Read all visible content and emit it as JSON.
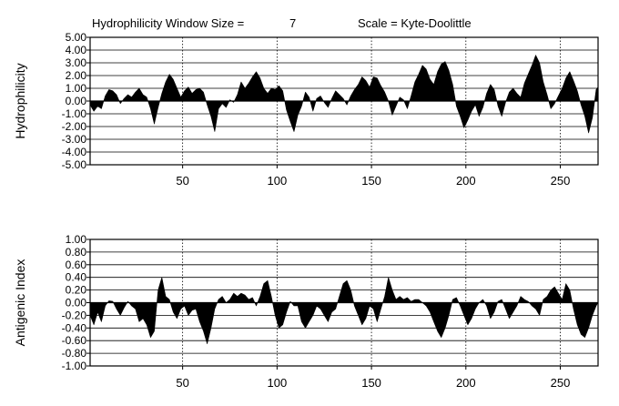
{
  "header": {
    "window_label": "Hydrophilicity Window Size =",
    "window_value": "7",
    "scale_label": "Scale = Kyte-Doolittle"
  },
  "chart_data": [
    {
      "type": "area",
      "ylabel": "Hydrophilicity",
      "xlim": [
        1,
        270
      ],
      "ylim": [
        -5,
        5
      ],
      "y_ticks": [
        "5.00",
        "4.00",
        "3.00",
        "2.00",
        "1.00",
        "0.00",
        "-1.00",
        "-2.00",
        "-3.00",
        "-4.00",
        "-5.00"
      ],
      "x_ticks": [
        "50",
        "100",
        "150",
        "200",
        "250"
      ],
      "grid": "horizontal lines at each y tick; dotted vertical lines at each x tick",
      "fill_color": "#000000",
      "profile": [
        [
          1,
          -0.3
        ],
        [
          3,
          -0.8
        ],
        [
          5,
          -0.4
        ],
        [
          7,
          -0.6
        ],
        [
          9,
          0.4
        ],
        [
          11,
          0.9
        ],
        [
          13,
          0.8
        ],
        [
          15,
          0.5
        ],
        [
          17,
          -0.2
        ],
        [
          19,
          0.2
        ],
        [
          21,
          0.5
        ],
        [
          23,
          0.3
        ],
        [
          25,
          0.7
        ],
        [
          27,
          1.0
        ],
        [
          29,
          0.5
        ],
        [
          31,
          0.3
        ],
        [
          33,
          -0.6
        ],
        [
          35,
          -1.8
        ],
        [
          37,
          -0.5
        ],
        [
          39,
          0.6
        ],
        [
          41,
          1.5
        ],
        [
          43,
          2.1
        ],
        [
          45,
          1.7
        ],
        [
          47,
          1.0
        ],
        [
          49,
          0.3
        ],
        [
          51,
          0.8
        ],
        [
          53,
          1.1
        ],
        [
          55,
          0.6
        ],
        [
          57,
          0.9
        ],
        [
          59,
          1.0
        ],
        [
          61,
          0.7
        ],
        [
          63,
          -0.3
        ],
        [
          65,
          -1.2
        ],
        [
          67,
          -2.4
        ],
        [
          69,
          -0.6
        ],
        [
          71,
          -0.2
        ],
        [
          73,
          -0.5
        ],
        [
          75,
          0.1
        ],
        [
          77,
          -0.1
        ],
        [
          79,
          0.5
        ],
        [
          81,
          1.5
        ],
        [
          83,
          1.0
        ],
        [
          85,
          1.4
        ],
        [
          87,
          1.9
        ],
        [
          89,
          2.3
        ],
        [
          91,
          1.8
        ],
        [
          93,
          1.0
        ],
        [
          95,
          0.6
        ],
        [
          97,
          1.0
        ],
        [
          99,
          0.9
        ],
        [
          101,
          1.2
        ],
        [
          103,
          0.8
        ],
        [
          105,
          -0.7
        ],
        [
          107,
          -1.6
        ],
        [
          109,
          -2.4
        ],
        [
          111,
          -1.1
        ],
        [
          113,
          -0.4
        ],
        [
          115,
          0.7
        ],
        [
          117,
          0.3
        ],
        [
          119,
          -0.8
        ],
        [
          121,
          0.2
        ],
        [
          123,
          0.4
        ],
        [
          125,
          -0.1
        ],
        [
          127,
          -0.5
        ],
        [
          129,
          0.2
        ],
        [
          131,
          0.8
        ],
        [
          133,
          0.5
        ],
        [
          135,
          0.2
        ],
        [
          137,
          -0.3
        ],
        [
          139,
          0.4
        ],
        [
          141,
          0.9
        ],
        [
          143,
          1.3
        ],
        [
          145,
          1.9
        ],
        [
          147,
          1.6
        ],
        [
          149,
          1.1
        ],
        [
          151,
          1.9
        ],
        [
          153,
          1.8
        ],
        [
          155,
          1.2
        ],
        [
          157,
          0.7
        ],
        [
          159,
          0.0
        ],
        [
          161,
          -1.1
        ],
        [
          163,
          -0.4
        ],
        [
          165,
          0.3
        ],
        [
          167,
          0.1
        ],
        [
          169,
          -0.6
        ],
        [
          171,
          0.4
        ],
        [
          173,
          1.5
        ],
        [
          175,
          2.1
        ],
        [
          177,
          2.8
        ],
        [
          179,
          2.5
        ],
        [
          181,
          1.7
        ],
        [
          183,
          1.3
        ],
        [
          185,
          2.3
        ],
        [
          187,
          2.9
        ],
        [
          189,
          3.1
        ],
        [
          191,
          2.4
        ],
        [
          193,
          1.3
        ],
        [
          195,
          -0.4
        ],
        [
          197,
          -1.2
        ],
        [
          199,
          -2.1
        ],
        [
          201,
          -1.5
        ],
        [
          203,
          -0.8
        ],
        [
          205,
          -0.3
        ],
        [
          207,
          -1.2
        ],
        [
          209,
          -0.5
        ],
        [
          211,
          0.6
        ],
        [
          213,
          1.3
        ],
        [
          215,
          0.9
        ],
        [
          217,
          -0.4
        ],
        [
          219,
          -1.2
        ],
        [
          221,
          -0.1
        ],
        [
          223,
          0.7
        ],
        [
          225,
          1.0
        ],
        [
          227,
          0.6
        ],
        [
          229,
          0.3
        ],
        [
          231,
          1.4
        ],
        [
          233,
          2.1
        ],
        [
          235,
          2.8
        ],
        [
          237,
          3.6
        ],
        [
          239,
          3.0
        ],
        [
          241,
          1.5
        ],
        [
          243,
          0.5
        ],
        [
          245,
          -0.6
        ],
        [
          247,
          -0.2
        ],
        [
          249,
          0.4
        ],
        [
          251,
          1.0
        ],
        [
          253,
          1.8
        ],
        [
          255,
          2.3
        ],
        [
          257,
          1.6
        ],
        [
          259,
          0.8
        ],
        [
          261,
          -0.3
        ],
        [
          263,
          -1.2
        ],
        [
          265,
          -2.5
        ],
        [
          267,
          -1.3
        ],
        [
          269,
          0.9
        ],
        [
          270,
          1.1
        ]
      ]
    },
    {
      "type": "area",
      "ylabel": "Antigenic Index",
      "xlim": [
        1,
        270
      ],
      "ylim": [
        -1.0,
        1.0
      ],
      "y_ticks": [
        "1.00",
        "0.80",
        "0.60",
        "0.40",
        "0.20",
        "0.00",
        "-0.20",
        "-0.40",
        "-0.60",
        "-0.80",
        "-1.00"
      ],
      "x_ticks": [
        "50",
        "100",
        "150",
        "200",
        "250"
      ],
      "grid": "horizontal lines at each y tick; dotted vertical lines at each x tick",
      "fill_color": "#000000",
      "profile": [
        [
          1,
          -0.2
        ],
        [
          3,
          -0.35
        ],
        [
          5,
          -0.15
        ],
        [
          7,
          -0.3
        ],
        [
          9,
          -0.05
        ],
        [
          11,
          0.03
        ],
        [
          13,
          0.02
        ],
        [
          15,
          -0.1
        ],
        [
          17,
          -0.2
        ],
        [
          19,
          -0.08
        ],
        [
          21,
          0.02
        ],
        [
          23,
          -0.05
        ],
        [
          25,
          -0.1
        ],
        [
          27,
          -0.3
        ],
        [
          29,
          -0.25
        ],
        [
          31,
          -0.35
        ],
        [
          33,
          -0.55
        ],
        [
          35,
          -0.45
        ],
        [
          37,
          0.2
        ],
        [
          39,
          0.4
        ],
        [
          41,
          0.1
        ],
        [
          43,
          0.05
        ],
        [
          45,
          -0.15
        ],
        [
          47,
          -0.25
        ],
        [
          49,
          -0.1
        ],
        [
          51,
          -0.05
        ],
        [
          53,
          -0.2
        ],
        [
          55,
          -0.12
        ],
        [
          57,
          -0.1
        ],
        [
          59,
          -0.3
        ],
        [
          61,
          -0.45
        ],
        [
          63,
          -0.65
        ],
        [
          65,
          -0.4
        ],
        [
          67,
          -0.1
        ],
        [
          69,
          0.05
        ],
        [
          71,
          0.1
        ],
        [
          73,
          0.0
        ],
        [
          75,
          0.05
        ],
        [
          77,
          0.15
        ],
        [
          79,
          0.1
        ],
        [
          81,
          0.15
        ],
        [
          83,
          0.12
        ],
        [
          85,
          0.05
        ],
        [
          87,
          0.08
        ],
        [
          89,
          -0.05
        ],
        [
          91,
          0.1
        ],
        [
          93,
          0.3
        ],
        [
          95,
          0.35
        ],
        [
          97,
          0.1
        ],
        [
          99,
          -0.2
        ],
        [
          101,
          -0.4
        ],
        [
          103,
          -0.35
        ],
        [
          105,
          -0.15
        ],
        [
          107,
          0.02
        ],
        [
          109,
          -0.05
        ],
        [
          111,
          -0.05
        ],
        [
          113,
          -0.3
        ],
        [
          115,
          -0.4
        ],
        [
          117,
          -0.3
        ],
        [
          119,
          -0.2
        ],
        [
          121,
          -0.05
        ],
        [
          123,
          -0.1
        ],
        [
          125,
          -0.2
        ],
        [
          127,
          -0.3
        ],
        [
          129,
          -0.15
        ],
        [
          131,
          -0.1
        ],
        [
          133,
          0.1
        ],
        [
          135,
          0.3
        ],
        [
          137,
          0.35
        ],
        [
          139,
          0.2
        ],
        [
          141,
          -0.05
        ],
        [
          143,
          -0.2
        ],
        [
          145,
          -0.35
        ],
        [
          147,
          -0.25
        ],
        [
          149,
          -0.05
        ],
        [
          151,
          -0.1
        ],
        [
          153,
          -0.3
        ],
        [
          155,
          -0.1
        ],
        [
          157,
          0.1
        ],
        [
          159,
          0.4
        ],
        [
          161,
          0.2
        ],
        [
          163,
          0.05
        ],
        [
          165,
          0.1
        ],
        [
          167,
          0.05
        ],
        [
          169,
          0.08
        ],
        [
          171,
          0.02
        ],
        [
          173,
          0.05
        ],
        [
          175,
          0.05
        ],
        [
          177,
          0.0
        ],
        [
          179,
          -0.05
        ],
        [
          181,
          -0.15
        ],
        [
          183,
          -0.3
        ],
        [
          185,
          -0.45
        ],
        [
          187,
          -0.55
        ],
        [
          189,
          -0.4
        ],
        [
          191,
          -0.2
        ],
        [
          193,
          0.05
        ],
        [
          195,
          0.08
        ],
        [
          197,
          -0.05
        ],
        [
          199,
          -0.2
        ],
        [
          201,
          -0.35
        ],
        [
          203,
          -0.25
        ],
        [
          205,
          -0.1
        ],
        [
          207,
          0.0
        ],
        [
          209,
          0.05
        ],
        [
          211,
          -0.05
        ],
        [
          213,
          -0.25
        ],
        [
          215,
          -0.15
        ],
        [
          217,
          0.02
        ],
        [
          219,
          0.05
        ],
        [
          221,
          -0.1
        ],
        [
          223,
          -0.25
        ],
        [
          225,
          -0.15
        ],
        [
          227,
          -0.05
        ],
        [
          229,
          0.1
        ],
        [
          231,
          0.05
        ],
        [
          233,
          0.02
        ],
        [
          235,
          -0.05
        ],
        [
          237,
          -0.1
        ],
        [
          239,
          -0.2
        ],
        [
          241,
          0.05
        ],
        [
          243,
          0.1
        ],
        [
          245,
          0.2
        ],
        [
          247,
          0.25
        ],
        [
          249,
          0.15
        ],
        [
          251,
          0.05
        ],
        [
          253,
          0.3
        ],
        [
          255,
          0.2
        ],
        [
          257,
          -0.1
        ],
        [
          259,
          -0.35
        ],
        [
          261,
          -0.5
        ],
        [
          263,
          -0.55
        ],
        [
          265,
          -0.4
        ],
        [
          267,
          -0.2
        ],
        [
          269,
          -0.05
        ],
        [
          270,
          0.0
        ]
      ]
    }
  ]
}
